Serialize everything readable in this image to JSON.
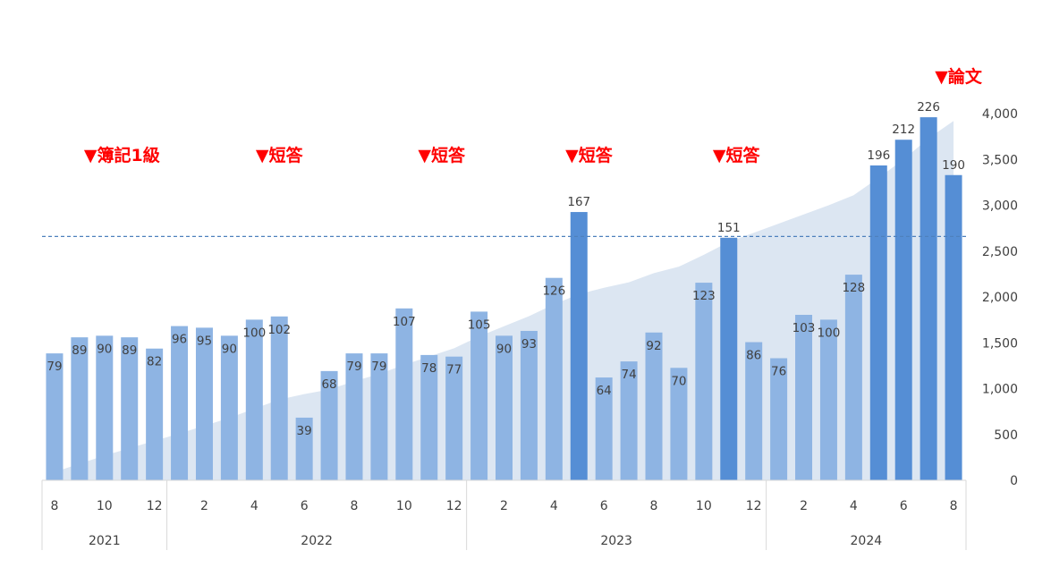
{
  "chart_data": {
    "type": "bar",
    "months": [
      "8",
      "9",
      "10",
      "11",
      "12",
      "1",
      "2",
      "3",
      "4",
      "5",
      "6",
      "7",
      "8",
      "9",
      "10",
      "11",
      "12",
      "1",
      "2",
      "3",
      "4",
      "5",
      "6",
      "7",
      "8",
      "9",
      "10",
      "11",
      "12",
      "1",
      "2",
      "3",
      "4",
      "5",
      "6",
      "7",
      "8"
    ],
    "x_tick_labels": [
      "8",
      "",
      "10",
      "",
      "12",
      "",
      "2",
      "",
      "4",
      "",
      "6",
      "",
      "8",
      "",
      "10",
      "",
      "12",
      "",
      "2",
      "",
      "4",
      "",
      "6",
      "",
      "8",
      "",
      "10",
      "",
      "12",
      "",
      "2",
      "",
      "4",
      "",
      "6",
      "",
      "8"
    ],
    "year_labels": [
      {
        "label": "2021",
        "start": 0,
        "end": 4
      },
      {
        "label": "2022",
        "start": 5,
        "end": 16
      },
      {
        "label": "2023",
        "start": 17,
        "end": 28
      },
      {
        "label": "2024",
        "start": 29,
        "end": 36
      }
    ],
    "series": [
      {
        "type": "bar",
        "values": [
          79,
          89,
          90,
          89,
          82,
          96,
          95,
          90,
          100,
          102,
          39,
          68,
          79,
          79,
          107,
          78,
          77,
          105,
          90,
          93,
          126,
          167,
          64,
          74,
          92,
          70,
          123,
          151,
          86,
          76,
          103,
          100,
          128,
          196,
          212,
          226,
          190
        ],
        "highlight": [
          false,
          false,
          false,
          false,
          false,
          false,
          false,
          false,
          false,
          false,
          false,
          false,
          false,
          false,
          false,
          false,
          false,
          false,
          false,
          false,
          false,
          true,
          false,
          false,
          false,
          false,
          false,
          true,
          false,
          false,
          false,
          false,
          false,
          true,
          true,
          true,
          true
        ],
        "ylim": [
          0,
          228
        ]
      },
      {
        "type": "area",
        "axis": "right",
        "values": [
          90,
          180,
          270,
          350,
          430,
          510,
          595,
          680,
          780,
          880,
          940,
          990,
          1080,
          1160,
          1260,
          1350,
          1440,
          1570,
          1680,
          1790,
          1920,
          2030,
          2100,
          2160,
          2260,
          2330,
          2460,
          2600,
          2700,
          2800,
          2900,
          3000,
          3110,
          3300,
          3500,
          3730,
          3920
        ]
      }
    ],
    "y2_ticks": [
      "4,000",
      "3,500",
      "3,000",
      "2,500",
      "2,000",
      "1,500",
      "1,000",
      "500",
      "0"
    ],
    "y2_values": [
      4000,
      3500,
      3000,
      2500,
      2000,
      1500,
      1000,
      500,
      0
    ],
    "y2lim": [
      0,
      4000
    ],
    "reference_line": {
      "axis": "right",
      "value": 2660
    },
    "annotations": [
      {
        "text": "▼簿記1級",
        "at": 3.2
      },
      {
        "text": "▼短答",
        "at": 9.5
      },
      {
        "text": "▼短答",
        "at": 16.0
      },
      {
        "text": "▼短答",
        "at": 21.9
      },
      {
        "text": "▼短答",
        "at": 27.8
      },
      {
        "text": "▼論文",
        "at": 36.7
      }
    ],
    "colors": {
      "bar": "#8EB4E3",
      "bar_highlight": "#558ED5",
      "area": "#DCE6F2",
      "reference_line": "#4F81BD",
      "annotation": "#FF0000",
      "label": "#404040",
      "axis_line": "#D9D9D9"
    }
  }
}
